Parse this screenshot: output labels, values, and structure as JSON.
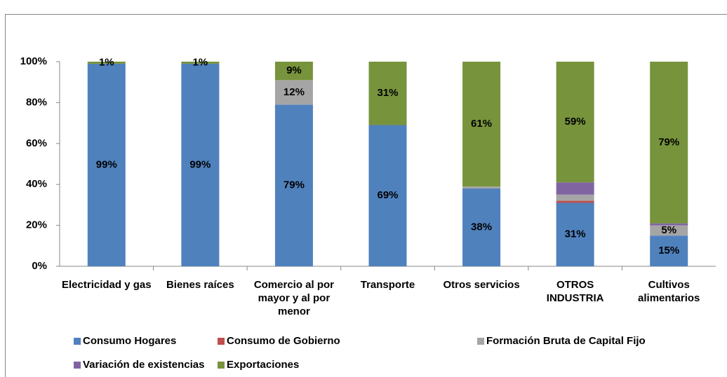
{
  "chart_data": {
    "type": "stacked_bar_100",
    "categories": [
      "Electricidad y gas",
      "Bienes raíces",
      "Comercio al por mayor y al por menor",
      "Transporte",
      "Otros servicios",
      "OTROS INDUSTRIA",
      "Cultivos alimentarios"
    ],
    "series": [
      {
        "name": "Consumo Hogares",
        "color": "#4f81bd",
        "values": [
          99,
          99,
          79,
          69,
          38,
          31,
          15
        ],
        "value_labels": [
          "99%",
          "99%",
          "79%",
          "69%",
          "38%",
          "31%",
          "15%"
        ]
      },
      {
        "name": "Consumo de Gobierno",
        "color": "#c0504d",
        "values": [
          0,
          0,
          0,
          0,
          0,
          1,
          0
        ],
        "value_labels": [
          null,
          null,
          null,
          null,
          null,
          null,
          null
        ]
      },
      {
        "name": "Formación Bruta de Capital Fijo",
        "color": "#a5a5a5",
        "values": [
          0,
          0,
          12,
          0,
          1,
          3,
          5
        ],
        "value_labels": [
          null,
          null,
          "12%",
          null,
          null,
          null,
          "5%"
        ]
      },
      {
        "name": "Variación de existencias",
        "color": "#8064a2",
        "values": [
          0,
          0,
          0,
          0,
          0,
          6,
          1
        ],
        "value_labels": [
          null,
          null,
          null,
          null,
          null,
          null,
          null
        ]
      },
      {
        "name": "Exportaciones",
        "color": "#77933c",
        "values": [
          1,
          1,
          9,
          31,
          61,
          59,
          79
        ],
        "value_labels": [
          "1%",
          "1%",
          "9%",
          "31%",
          "61%",
          "59%",
          "79%"
        ]
      }
    ],
    "ylim": [
      0,
      100
    ],
    "yticks": [
      {
        "value": 0,
        "label": "0%"
      },
      {
        "value": 20,
        "label": "20%"
      },
      {
        "value": 40,
        "label": "40%"
      },
      {
        "value": 60,
        "label": "60%"
      },
      {
        "value": 80,
        "label": "80%"
      },
      {
        "value": 100,
        "label": "100%"
      }
    ],
    "legend": "bottom"
  }
}
